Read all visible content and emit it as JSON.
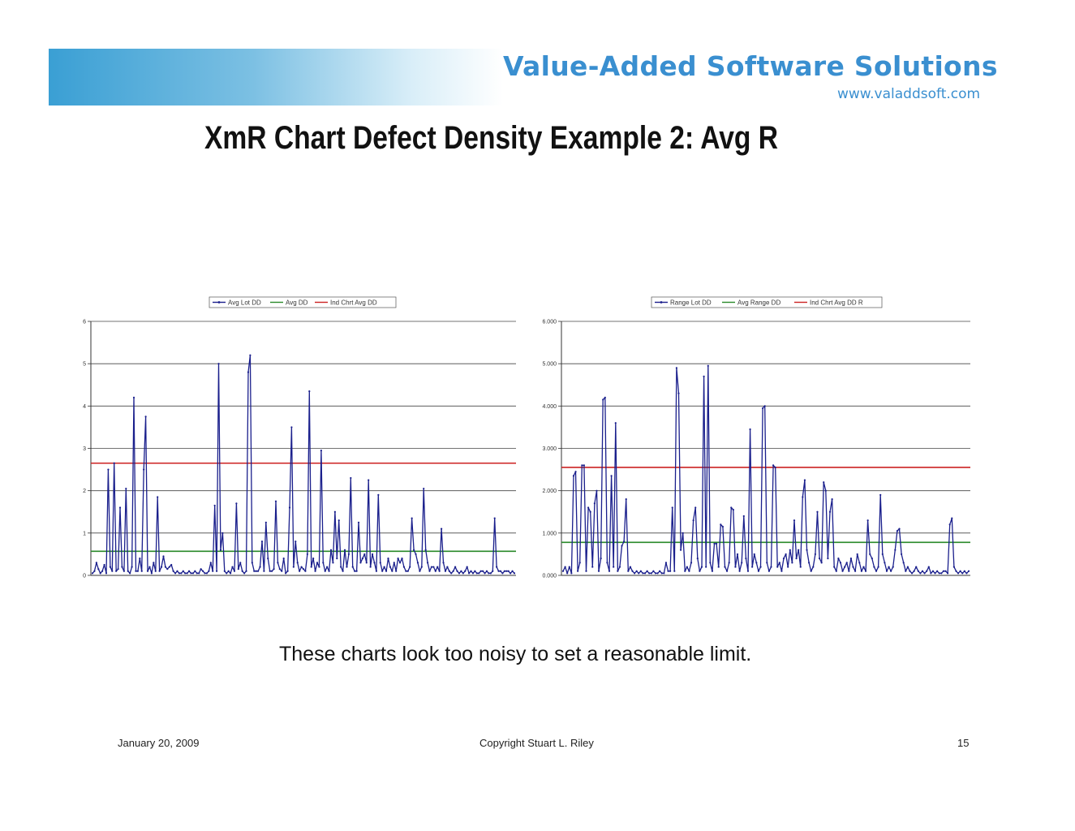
{
  "header": {
    "brand": "Value-Added Software Solutions",
    "url": "www.valaddsoft.com"
  },
  "slide": {
    "title": "XmR Chart Defect Density Example 2:  Avg R",
    "caption": "These charts look too noisy to set a reasonable limit."
  },
  "footer": {
    "date": "January 20, 2009",
    "copyright": "Copyright    Stuart L. Riley",
    "page": "15"
  },
  "colors": {
    "series": "#1a1f8c",
    "avg": "#2a8a2a",
    "limit": "#cc2222",
    "grid": "#444444",
    "band_start": "#3a9fd4",
    "brand": "#3a8fd0"
  },
  "chart_data": [
    {
      "type": "line",
      "legend": [
        "Avg Lot DD",
        "Avg DD",
        "Ind Chrt Avg DD"
      ],
      "legend_position": "top-right",
      "ylim": [
        0,
        6
      ],
      "yticks": [
        "0",
        "1",
        "2",
        "3",
        "4",
        "5",
        "6"
      ],
      "grid": true,
      "series": [
        {
          "name": "Avg Lot DD",
          "values": [
            0.05,
            0.1,
            0.3,
            0.15,
            0.05,
            0.1,
            0.25,
            0.05,
            2.5,
            0.2,
            0.1,
            2.65,
            0.1,
            0.15,
            1.6,
            0.2,
            0.1,
            2.05,
            0.1,
            0.05,
            0.2,
            4.2,
            0.1,
            0.1,
            0.4,
            0.1,
            2.5,
            3.75,
            0.1,
            0.2,
            0.05,
            0.3,
            0.1,
            1.85,
            0.1,
            0.2,
            0.45,
            0.2,
            0.15,
            0.2,
            0.25,
            0.1,
            0.05,
            0.1,
            0.05,
            0.05,
            0.1,
            0.05,
            0.05,
            0.1,
            0.05,
            0.05,
            0.1,
            0.05,
            0.05,
            0.15,
            0.1,
            0.05,
            0.05,
            0.1,
            0.3,
            0.1,
            1.65,
            0.1,
            5.0,
            0.6,
            1.0,
            0.1,
            0.05,
            0.1,
            0.05,
            0.2,
            0.1,
            1.7,
            0.15,
            0.3,
            0.1,
            0.05,
            0.1,
            4.8,
            5.2,
            0.3,
            0.1,
            0.1,
            0.1,
            0.2,
            0.8,
            0.1,
            1.25,
            0.4,
            0.1,
            0.1,
            0.15,
            1.75,
            0.3,
            0.15,
            0.1,
            0.4,
            0.05,
            0.1,
            1.6,
            3.5,
            0.2,
            0.8,
            0.3,
            0.1,
            0.2,
            0.15,
            0.1,
            0.5,
            4.35,
            0.2,
            0.4,
            0.1,
            0.3,
            0.2,
            2.95,
            0.3,
            0.1,
            0.2,
            0.1,
            0.6,
            0.3,
            1.5,
            0.4,
            1.3,
            0.2,
            0.1,
            0.6,
            0.2,
            0.5,
            2.3,
            0.2,
            0.1,
            0.1,
            1.25,
            0.3,
            0.4,
            0.5,
            0.3,
            2.25,
            0.2,
            0.5,
            0.3,
            0.1,
            1.9,
            0.3,
            0.1,
            0.2,
            0.1,
            0.4,
            0.2,
            0.1,
            0.3,
            0.1,
            0.4,
            0.3,
            0.4,
            0.2,
            0.1,
            0.1,
            0.2,
            1.35,
            0.6,
            0.5,
            0.3,
            0.1,
            0.2,
            2.05,
            0.6,
            0.3,
            0.1,
            0.2,
            0.2,
            0.1,
            0.2,
            0.1,
            1.1,
            0.3,
            0.1,
            0.2,
            0.1,
            0.05,
            0.1,
            0.2,
            0.1,
            0.05,
            0.1,
            0.05,
            0.1,
            0.2,
            0.05,
            0.1,
            0.05,
            0.1,
            0.05,
            0.05,
            0.1,
            0.1,
            0.05,
            0.1,
            0.05,
            0.05,
            0.1,
            1.35,
            0.2,
            0.1,
            0.1,
            0.05,
            0.1,
            0.1,
            0.1,
            0.05,
            0.1,
            0.05
          ]
        },
        {
          "name": "Avg DD",
          "value": 0.57
        },
        {
          "name": "Ind Chrt Avg DD",
          "value": 2.65
        }
      ]
    },
    {
      "type": "line",
      "legend": [
        "Range Lot DD",
        "Avg Range DD",
        "Ind Chrt Avg DD R"
      ],
      "legend_position": "top-right",
      "ylim": [
        0,
        6
      ],
      "yticks": [
        "0.000",
        "1.000",
        "2.000",
        "3.000",
        "4.000",
        "5.000",
        "6.000"
      ],
      "grid": true,
      "series": [
        {
          "name": "Range Lot DD",
          "values": [
            0.1,
            0.2,
            0.05,
            0.2,
            0.05,
            2.35,
            2.45,
            0.1,
            0.3,
            2.6,
            2.6,
            0.1,
            1.6,
            1.5,
            0.2,
            1.7,
            2.0,
            0.1,
            0.4,
            4.15,
            4.2,
            0.3,
            0.1,
            2.35,
            0.2,
            3.6,
            0.1,
            0.2,
            0.7,
            0.8,
            1.8,
            0.1,
            0.2,
            0.1,
            0.05,
            0.1,
            0.05,
            0.1,
            0.05,
            0.05,
            0.1,
            0.05,
            0.05,
            0.1,
            0.05,
            0.05,
            0.1,
            0.05,
            0.05,
            0.3,
            0.1,
            0.1,
            1.6,
            0.1,
            4.9,
            4.3,
            0.6,
            1.0,
            0.1,
            0.2,
            0.1,
            0.3,
            1.3,
            1.6,
            0.4,
            0.1,
            0.2,
            4.7,
            0.2,
            4.95,
            0.3,
            0.1,
            0.75,
            0.75,
            0.2,
            1.2,
            1.15,
            0.2,
            0.1,
            0.3,
            1.6,
            1.55,
            0.2,
            0.5,
            0.1,
            0.3,
            1.4,
            0.4,
            0.1,
            3.45,
            0.2,
            0.5,
            0.3,
            0.1,
            0.2,
            3.95,
            4.0,
            0.3,
            0.1,
            0.2,
            2.6,
            2.55,
            0.2,
            0.3,
            0.1,
            0.4,
            0.5,
            0.2,
            0.6,
            0.3,
            1.3,
            0.4,
            0.6,
            0.2,
            1.85,
            2.25,
            0.6,
            0.3,
            0.1,
            0.2,
            0.5,
            1.5,
            0.4,
            0.3,
            2.2,
            2.0,
            0.4,
            1.5,
            1.8,
            0.2,
            0.1,
            0.4,
            0.3,
            0.1,
            0.2,
            0.3,
            0.1,
            0.4,
            0.2,
            0.1,
            0.5,
            0.3,
            0.1,
            0.2,
            0.1,
            1.3,
            0.5,
            0.4,
            0.2,
            0.1,
            0.2,
            1.9,
            0.5,
            0.3,
            0.1,
            0.2,
            0.1,
            0.2,
            0.6,
            1.05,
            1.1,
            0.5,
            0.3,
            0.1,
            0.2,
            0.1,
            0.05,
            0.1,
            0.2,
            0.1,
            0.05,
            0.1,
            0.05,
            0.1,
            0.2,
            0.05,
            0.1,
            0.05,
            0.1,
            0.05,
            0.05,
            0.1,
            0.1,
            0.05,
            1.2,
            1.35,
            0.2,
            0.1,
            0.05,
            0.1,
            0.05,
            0.1,
            0.05,
            0.1
          ]
        },
        {
          "name": "Avg Range DD",
          "value": 0.78
        },
        {
          "name": "Ind Chrt Avg DD R",
          "value": 2.55
        }
      ]
    }
  ]
}
